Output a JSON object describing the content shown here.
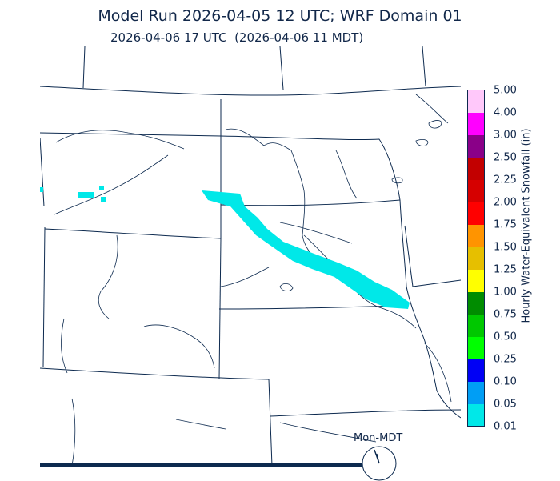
{
  "header": {
    "title": "Model Run 2026-04-05 12 UTC; WRF Domain 01",
    "subtitle": "2026-04-06 17 UTC  (2026-04-06 11 MDT)"
  },
  "colorbar": {
    "axis_label": "Hourly Water-Equivalent Snowfall (in)",
    "levels": [
      "0.01",
      "0.05",
      "0.10",
      "0.25",
      "0.50",
      "0.75",
      "1.00",
      "1.25",
      "1.50",
      "1.75",
      "2.00",
      "2.25",
      "2.50",
      "3.00",
      "4.00",
      "5.00"
    ],
    "colors": [
      "#00e8e8",
      "#009ef5",
      "#0000f5",
      "#00ff00",
      "#00c800",
      "#008c00",
      "#ffff00",
      "#e6bf00",
      "#ff9400",
      "#ff0000",
      "#d60000",
      "#c20000",
      "#8a0088",
      "#ff00ff",
      "#ffc8fa"
    ]
  },
  "footer": {
    "timezone_label": "Mon-MDT"
  },
  "colors": {
    "map_lines": "#0d2a4f",
    "snow_light": "#00e8e8"
  }
}
